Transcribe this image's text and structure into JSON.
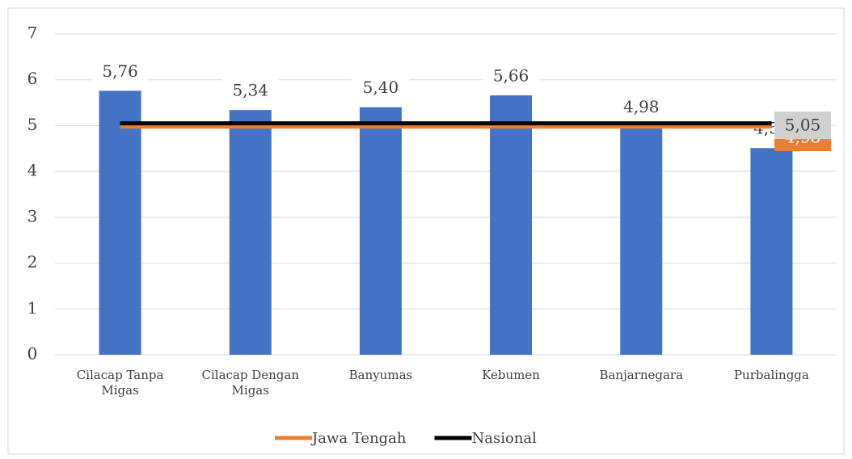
{
  "chart_data": {
    "type": "bar",
    "categories": [
      "Cilacap Tanpa Migas",
      "Cilacap Dengan Migas",
      "Banyumas",
      "Kebumen",
      "Banjarnegara",
      "Purbalingga"
    ],
    "values": [
      5.76,
      5.34,
      5.4,
      5.66,
      4.98,
      4.51
    ],
    "value_labels": [
      "5,76",
      "5,34",
      "5,40",
      "5,66",
      "4,98",
      "4,51"
    ],
    "color": "#4472c4",
    "series": [
      {
        "name": "Jawa Tengah",
        "type": "line",
        "color": "#ed7d31",
        "values": [
          4.98,
          4.98,
          4.98,
          4.98,
          4.98,
          4.98
        ],
        "value_labels": [
          null,
          null,
          null,
          null,
          null,
          "4,98"
        ]
      },
      {
        "name": "Nasional",
        "type": "line",
        "color": "#000000",
        "values": [
          5.05,
          5.05,
          5.05,
          5.05,
          5.05,
          5.05
        ],
        "value_labels": [
          null,
          null,
          null,
          null,
          null,
          "5,05"
        ]
      }
    ],
    "ylim": [
      0,
      7
    ],
    "yticks": [
      0,
      1,
      2,
      3,
      4,
      5,
      6,
      7
    ],
    "grid": true,
    "legend": "bottom"
  }
}
